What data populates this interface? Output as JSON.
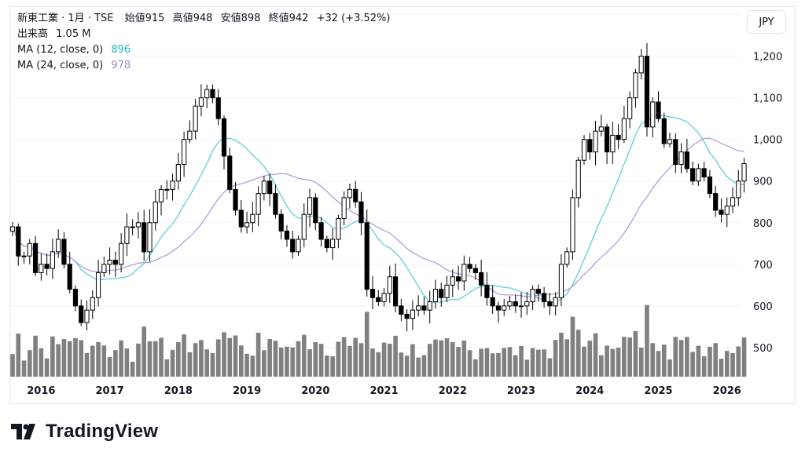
{
  "header": {
    "symbol": "新東工業 · 1月 · TSE",
    "open_label": "始値",
    "open": "915",
    "high_label": "高値",
    "high": "948",
    "low_label": "安値",
    "low": "898",
    "close_label": "終値",
    "close": "942",
    "change": "+32 (+3.52%)",
    "volume_label": "出来高",
    "volume": "1.05 M",
    "ma1_label": "MA (12, close, 0)",
    "ma1_value": "896",
    "ma2_label": "MA (24, close, 0)",
    "ma2_value": "978"
  },
  "currency_button": "JPY",
  "brand": "TradingView",
  "colors": {
    "up": "#ffffff",
    "down": "#000000",
    "candle_border": "#000000",
    "volume": "#808080",
    "ma1": "#5fcfd6",
    "ma2": "#b39ddb",
    "grid": "#f0f3fa",
    "axis_text": "#131722"
  },
  "chart_data": {
    "type": "candlestick",
    "interval": "1M",
    "x_ticks": [
      "2016",
      "2017",
      "2018",
      "2019",
      "2020",
      "2021",
      "2022",
      "2023",
      "2024",
      "2025",
      "2026"
    ],
    "y_ticks": [
      500,
      600,
      700,
      800,
      900,
      1000,
      1100,
      1200,
      1300
    ],
    "ylim": [
      430,
      1320
    ],
    "start": "2015-08",
    "close": [
      790,
      720,
      720,
      750,
      680,
      700,
      690,
      730,
      760,
      700,
      640,
      600,
      560,
      590,
      620,
      680,
      700,
      710,
      700,
      750,
      790,
      790,
      800,
      730,
      800,
      850,
      880,
      880,
      900,
      940,
      1000,
      1020,
      1080,
      1100,
      1120,
      1100,
      1050,
      960,
      880,
      830,
      790,
      800,
      820,
      870,
      900,
      870,
      820,
      780,
      760,
      730,
      760,
      820,
      860,
      800,
      760,
      740,
      760,
      810,
      860,
      880,
      850,
      800,
      640,
      620,
      610,
      630,
      670,
      600,
      580,
      570,
      590,
      600,
      590,
      610,
      640,
      620,
      650,
      670,
      660,
      700,
      690,
      680,
      650,
      620,
      600,
      590,
      600,
      610,
      600,
      600,
      610,
      640,
      630,
      610,
      600,
      620,
      700,
      730,
      860,
      950,
      1000,
      970,
      1020,
      1030,
      970,
      1010,
      1000,
      1050,
      1100,
      1160,
      1200,
      1030,
      1090,
      1050,
      990,
      1000,
      940,
      970,
      930,
      900,
      930,
      910,
      870,
      830,
      820,
      840,
      860,
      900,
      942
    ]
  }
}
